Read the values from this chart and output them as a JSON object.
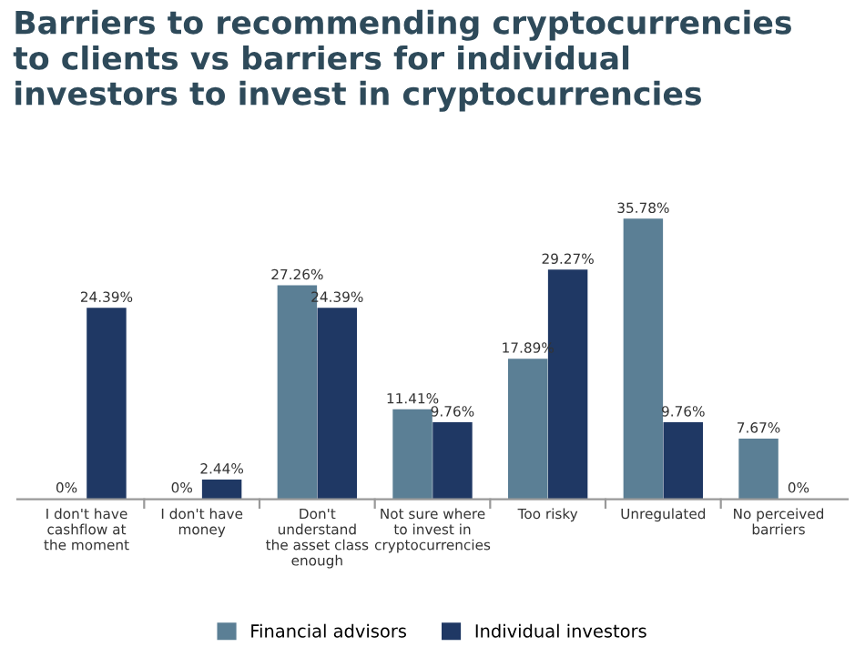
{
  "chart_data": {
    "type": "bar",
    "title": "Barriers to recommending cryptocurrencies\nto clients vs barriers for individual\ninvestors to invest in cryptocurrencies",
    "categories": [
      "I don't have\ncashflow at\nthe moment",
      "I don't have\nmoney",
      "Don't\nunderstand\nthe asset class\nenough",
      "Not sure where\nto invest in\ncryptocurrencies",
      "Too risky",
      "Unregulated",
      "No perceived\nbarriers"
    ],
    "series": [
      {
        "name": "Financial advisors",
        "color": "#5b7f95",
        "values": [
          0,
          0,
          27.26,
          11.41,
          17.89,
          35.78,
          7.67
        ],
        "value_labels": [
          "0%",
          "0%",
          "27.26%",
          "11.41%",
          "17.89%",
          "35.78%",
          "7.67%"
        ]
      },
      {
        "name": "Individual investors",
        "color": "#1f3864",
        "values": [
          24.39,
          2.44,
          24.39,
          9.76,
          29.27,
          9.76,
          0
        ],
        "value_labels": [
          "24.39%",
          "2.44%",
          "24.39%",
          "9.76%",
          "29.27%",
          "9.76%",
          "0%"
        ]
      }
    ],
    "legend": "bottom",
    "grid": false
  }
}
